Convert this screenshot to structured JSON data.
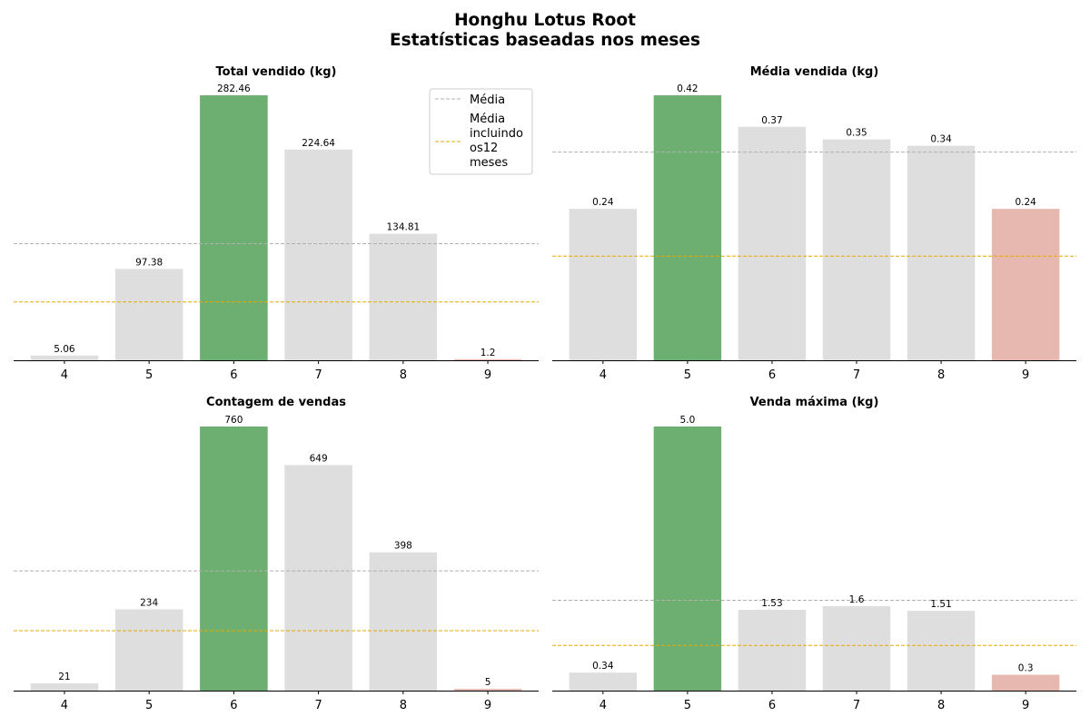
{
  "figure": {
    "title_line1": "Honghu Lotus Root",
    "title_line2": "Estatísticas baseadas nos meses"
  },
  "colors": {
    "bar_default": "#dedede",
    "bar_max": "#6daf70",
    "bar_min": "#e6b8b0",
    "mean_line": "#b0b0b0",
    "mean12_line": "#e6a800",
    "axis": "#000000"
  },
  "legend": {
    "placement": "top-right of first panel",
    "items": [
      {
        "label": "Média",
        "style": "mean"
      },
      {
        "label": "Média\nincluindo\nos12\nmeses",
        "style": "mean12"
      }
    ]
  },
  "chart_data": [
    {
      "type": "bar",
      "title": "Total vendido (kg)",
      "categories": [
        "4",
        "5",
        "6",
        "7",
        "8",
        "9"
      ],
      "values": [
        5.06,
        97.38,
        282.46,
        224.64,
        134.81,
        1.2
      ],
      "labels": [
        "5.06",
        "97.38",
        "282.46",
        "224.64",
        "134.81",
        "1.2"
      ],
      "highlight_max_index": 2,
      "highlight_min_index": 5,
      "mean": 124.26,
      "mean_12_months": 62.13,
      "show_legend": true
    },
    {
      "type": "bar",
      "title": "Média vendida (kg)",
      "categories": [
        "4",
        "5",
        "6",
        "7",
        "8",
        "9"
      ],
      "values": [
        0.24,
        0.42,
        0.37,
        0.35,
        0.34,
        0.24
      ],
      "labels": [
        "0.24",
        "0.42",
        "0.37",
        "0.35",
        "0.34",
        "0.24"
      ],
      "highlight_max_index": 1,
      "highlight_min_index": 5,
      "mean": 0.33,
      "mean_12_months": 0.165,
      "show_legend": false
    },
    {
      "type": "bar",
      "title": "Contagem de vendas",
      "categories": [
        "4",
        "5",
        "6",
        "7",
        "8",
        "9"
      ],
      "values": [
        21,
        234,
        760,
        649,
        398,
        5
      ],
      "labels": [
        "21",
        "234",
        "760",
        "649",
        "398",
        "5"
      ],
      "highlight_max_index": 2,
      "highlight_min_index": 5,
      "mean": 344.5,
      "mean_12_months": 172.25,
      "show_legend": false
    },
    {
      "type": "bar",
      "title": "Venda máxima (kg)",
      "categories": [
        "4",
        "5",
        "6",
        "7",
        "8",
        "9"
      ],
      "values": [
        0.34,
        5.0,
        1.53,
        1.6,
        1.51,
        0.3
      ],
      "labels": [
        "0.34",
        "5.0",
        "1.53",
        "1.6",
        "1.51",
        "0.3"
      ],
      "highlight_max_index": 1,
      "highlight_min_index": 5,
      "mean": 1.71,
      "mean_12_months": 0.855,
      "show_legend": false
    }
  ]
}
